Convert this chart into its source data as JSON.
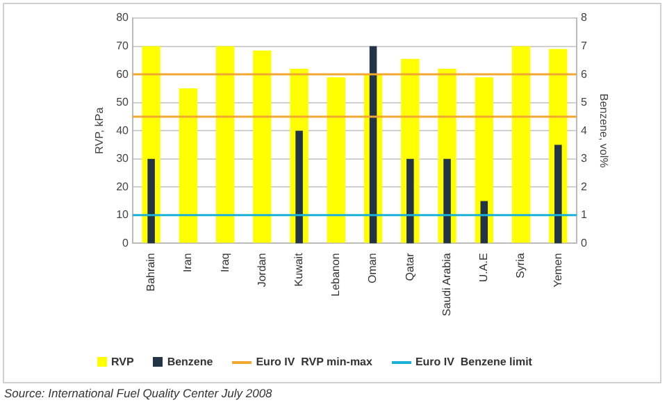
{
  "chart_data": {
    "type": "bar",
    "categories": [
      "Bahrain",
      "Iran",
      "Iraq",
      "Jordan",
      "Kuwait",
      "Lebanon",
      "Oman",
      "Qatar",
      "Saudi Arabia",
      "U.A.E",
      "Syria",
      "Yemen"
    ],
    "series": [
      {
        "name": "RVP",
        "color": "#ffff00",
        "values": [
          70,
          55,
          70,
          68.5,
          62,
          59,
          60,
          65.5,
          62,
          59,
          70,
          69
        ]
      },
      {
        "name": "Benzene",
        "color": "#243447",
        "axis": "y2",
        "values": [
          3,
          null,
          null,
          null,
          4,
          null,
          7,
          3,
          3,
          1.5,
          null,
          3.5
        ]
      }
    ],
    "ylabel": "RVP, kPa",
    "y2label": "Benzene, vol%",
    "ylim": [
      0,
      80
    ],
    "yticks": [
      0,
      10,
      20,
      30,
      40,
      50,
      60,
      70,
      80
    ],
    "y2lim": [
      0,
      8
    ],
    "y2ticks": [
      0,
      1,
      2,
      3,
      4,
      5,
      6,
      7,
      8
    ],
    "ref_lines": [
      {
        "axis": "y",
        "value": 60,
        "label": "Euro IV  RVP min-max",
        "color": "#f0a830"
      },
      {
        "axis": "y",
        "value": 45,
        "color": "#f0a830"
      },
      {
        "axis": "y2",
        "value": 1,
        "label": "Euro IV  Benzene limit",
        "color": "#1ab0d8"
      }
    ],
    "grid": "y",
    "legend": "bottom",
    "annotations": [
      "Source: International Fuel Quality Center July 2008"
    ]
  }
}
